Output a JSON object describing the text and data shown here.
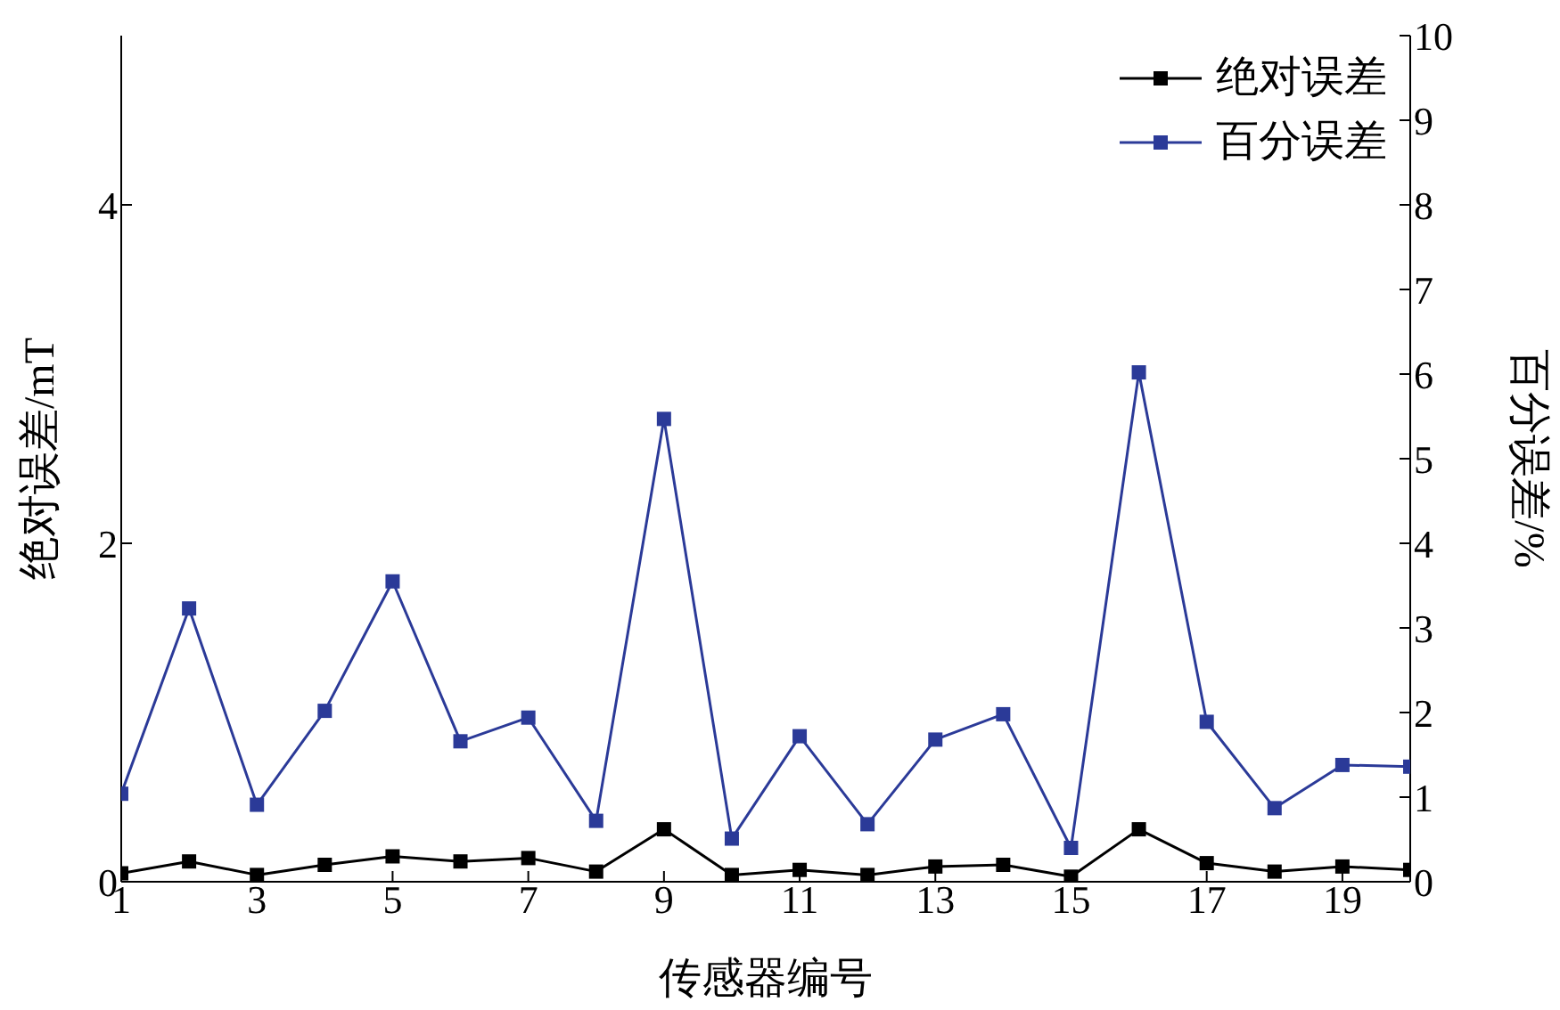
{
  "chart_data": {
    "type": "line",
    "xlabel": "传感器编号",
    "ylabel": "绝对误差/mT",
    "y2label": "百分误差/%",
    "x": [
      1,
      2,
      3,
      4,
      5,
      6,
      7,
      8,
      9,
      10,
      11,
      12,
      13,
      14,
      15,
      16,
      17,
      18,
      19,
      20
    ],
    "series": [
      {
        "name": "绝对误差",
        "color": "#000000",
        "values": [
          0.05,
          0.12,
          0.04,
          0.1,
          0.15,
          0.12,
          0.14,
          0.06,
          0.31,
          0.04,
          0.07,
          0.04,
          0.09,
          0.1,
          0.03,
          0.31,
          0.11,
          0.06,
          0.09,
          0.07
        ]
      },
      {
        "name": "百分误差",
        "color": "#2b3a98",
        "axis": "y2",
        "values": [
          1.04,
          3.23,
          0.91,
          2.02,
          3.55,
          1.66,
          1.94,
          0.72,
          5.47,
          0.51,
          1.72,
          0.68,
          1.68,
          1.98,
          0.4,
          6.02,
          1.89,
          0.87,
          1.38,
          1.36
        ]
      }
    ],
    "xlim": [
      1,
      20
    ],
    "xticks": [
      1,
      3,
      5,
      7,
      9,
      11,
      13,
      15,
      17,
      19
    ],
    "ylim": [
      0,
      5
    ],
    "yticks": [
      0,
      2,
      4
    ],
    "y2lim": [
      0,
      10
    ],
    "y2ticks": [
      0,
      1,
      2,
      3,
      4,
      5,
      6,
      7,
      8,
      9,
      10
    ],
    "grid": false,
    "legend": "top right",
    "marker": "square",
    "line_style": "solid"
  }
}
